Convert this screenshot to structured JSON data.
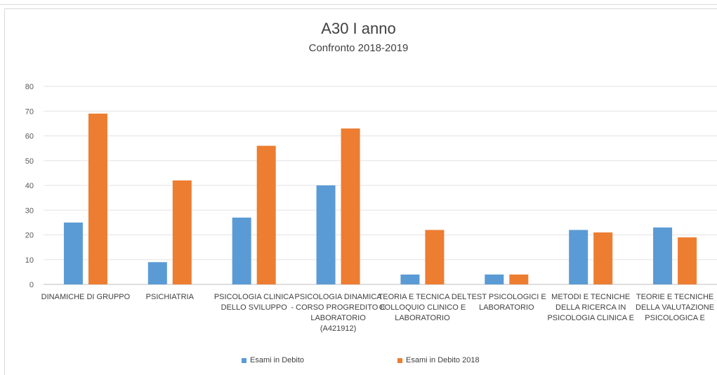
{
  "chart_data": {
    "type": "bar",
    "title": "A30 I anno",
    "subtitle": "Confronto 2018-2019",
    "categories": [
      [
        "DINAMICHE DI GRUPPO"
      ],
      [
        "PSICHIATRIA"
      ],
      [
        "PSICOLOGIA CLINICA",
        "DELLO SVILUPPO"
      ],
      [
        "PSICOLOGIA DINAMICA",
        "- CORSO PROGREDITO E",
        "LABORATORIO",
        "(A421912)"
      ],
      [
        "TEORIA E TECNICA DEL",
        "COLLOQUIO CLINICO E",
        "LABORATORIO"
      ],
      [
        "TEST PSICOLOGICI E",
        "LABORATORIO"
      ],
      [
        "METODI E TECNICHE",
        "DELLA RICERCA IN",
        "PSICOLOGIA CLINICA E"
      ],
      [
        "TEORIE E TECNICHE",
        "DELLA VALUTAZIONE",
        "PSICOLOGICA E"
      ]
    ],
    "series": [
      {
        "name": "Esami in Debito",
        "color": "#5b9bd5",
        "values": [
          25,
          9,
          27,
          40,
          4,
          4,
          22,
          23
        ]
      },
      {
        "name": "Esami in Debito 2018",
        "color": "#ed7d31",
        "values": [
          69,
          42,
          56,
          63,
          22,
          4,
          21,
          19
        ]
      }
    ],
    "ylim": [
      0,
      80
    ],
    "yticks": [
      0,
      10,
      20,
      30,
      40,
      50,
      60,
      70,
      80
    ],
    "grid": true,
    "legend_position": "bottom"
  }
}
